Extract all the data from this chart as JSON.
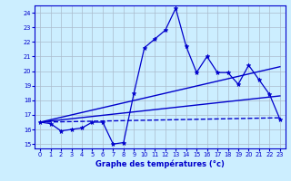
{
  "xlabel": "Graphe des températures (°c)",
  "background_color": "#cceeff",
  "grid_color": "#aabbcc",
  "line_color": "#0000cc",
  "x_ticks": [
    0,
    1,
    2,
    3,
    4,
    5,
    6,
    7,
    8,
    9,
    10,
    11,
    12,
    13,
    14,
    15,
    16,
    17,
    18,
    19,
    20,
    21,
    22,
    23
  ],
  "y_ticks": [
    15,
    16,
    17,
    18,
    19,
    20,
    21,
    22,
    23,
    24
  ],
  "xlim": [
    -0.5,
    23.5
  ],
  "ylim": [
    14.7,
    24.5
  ],
  "lines": [
    {
      "x": [
        0,
        1,
        2,
        3,
        4,
        5,
        6,
        7,
        8,
        9,
        10,
        11,
        12,
        13,
        14,
        15,
        16,
        17,
        18,
        19,
        20,
        21,
        22,
        23
      ],
      "y": [
        16.5,
        16.4,
        15.9,
        16.0,
        16.1,
        16.5,
        16.5,
        15.0,
        15.1,
        18.5,
        21.6,
        22.2,
        22.8,
        24.3,
        21.7,
        19.9,
        21.0,
        19.9,
        19.9,
        19.1,
        20.4,
        19.4,
        18.4,
        16.7
      ],
      "linestyle": "-",
      "marker": "*",
      "markersize": 3.5,
      "linewidth": 0.9
    },
    {
      "x": [
        0,
        23
      ],
      "y": [
        16.5,
        20.3
      ],
      "linestyle": "-",
      "marker": null,
      "markersize": 0,
      "linewidth": 1.0
    },
    {
      "x": [
        0,
        23
      ],
      "y": [
        16.5,
        18.3
      ],
      "linestyle": "-",
      "marker": null,
      "markersize": 0,
      "linewidth": 1.0
    },
    {
      "x": [
        0,
        23
      ],
      "y": [
        16.5,
        16.8
      ],
      "linestyle": "--",
      "marker": null,
      "markersize": 0,
      "linewidth": 1.0
    }
  ]
}
